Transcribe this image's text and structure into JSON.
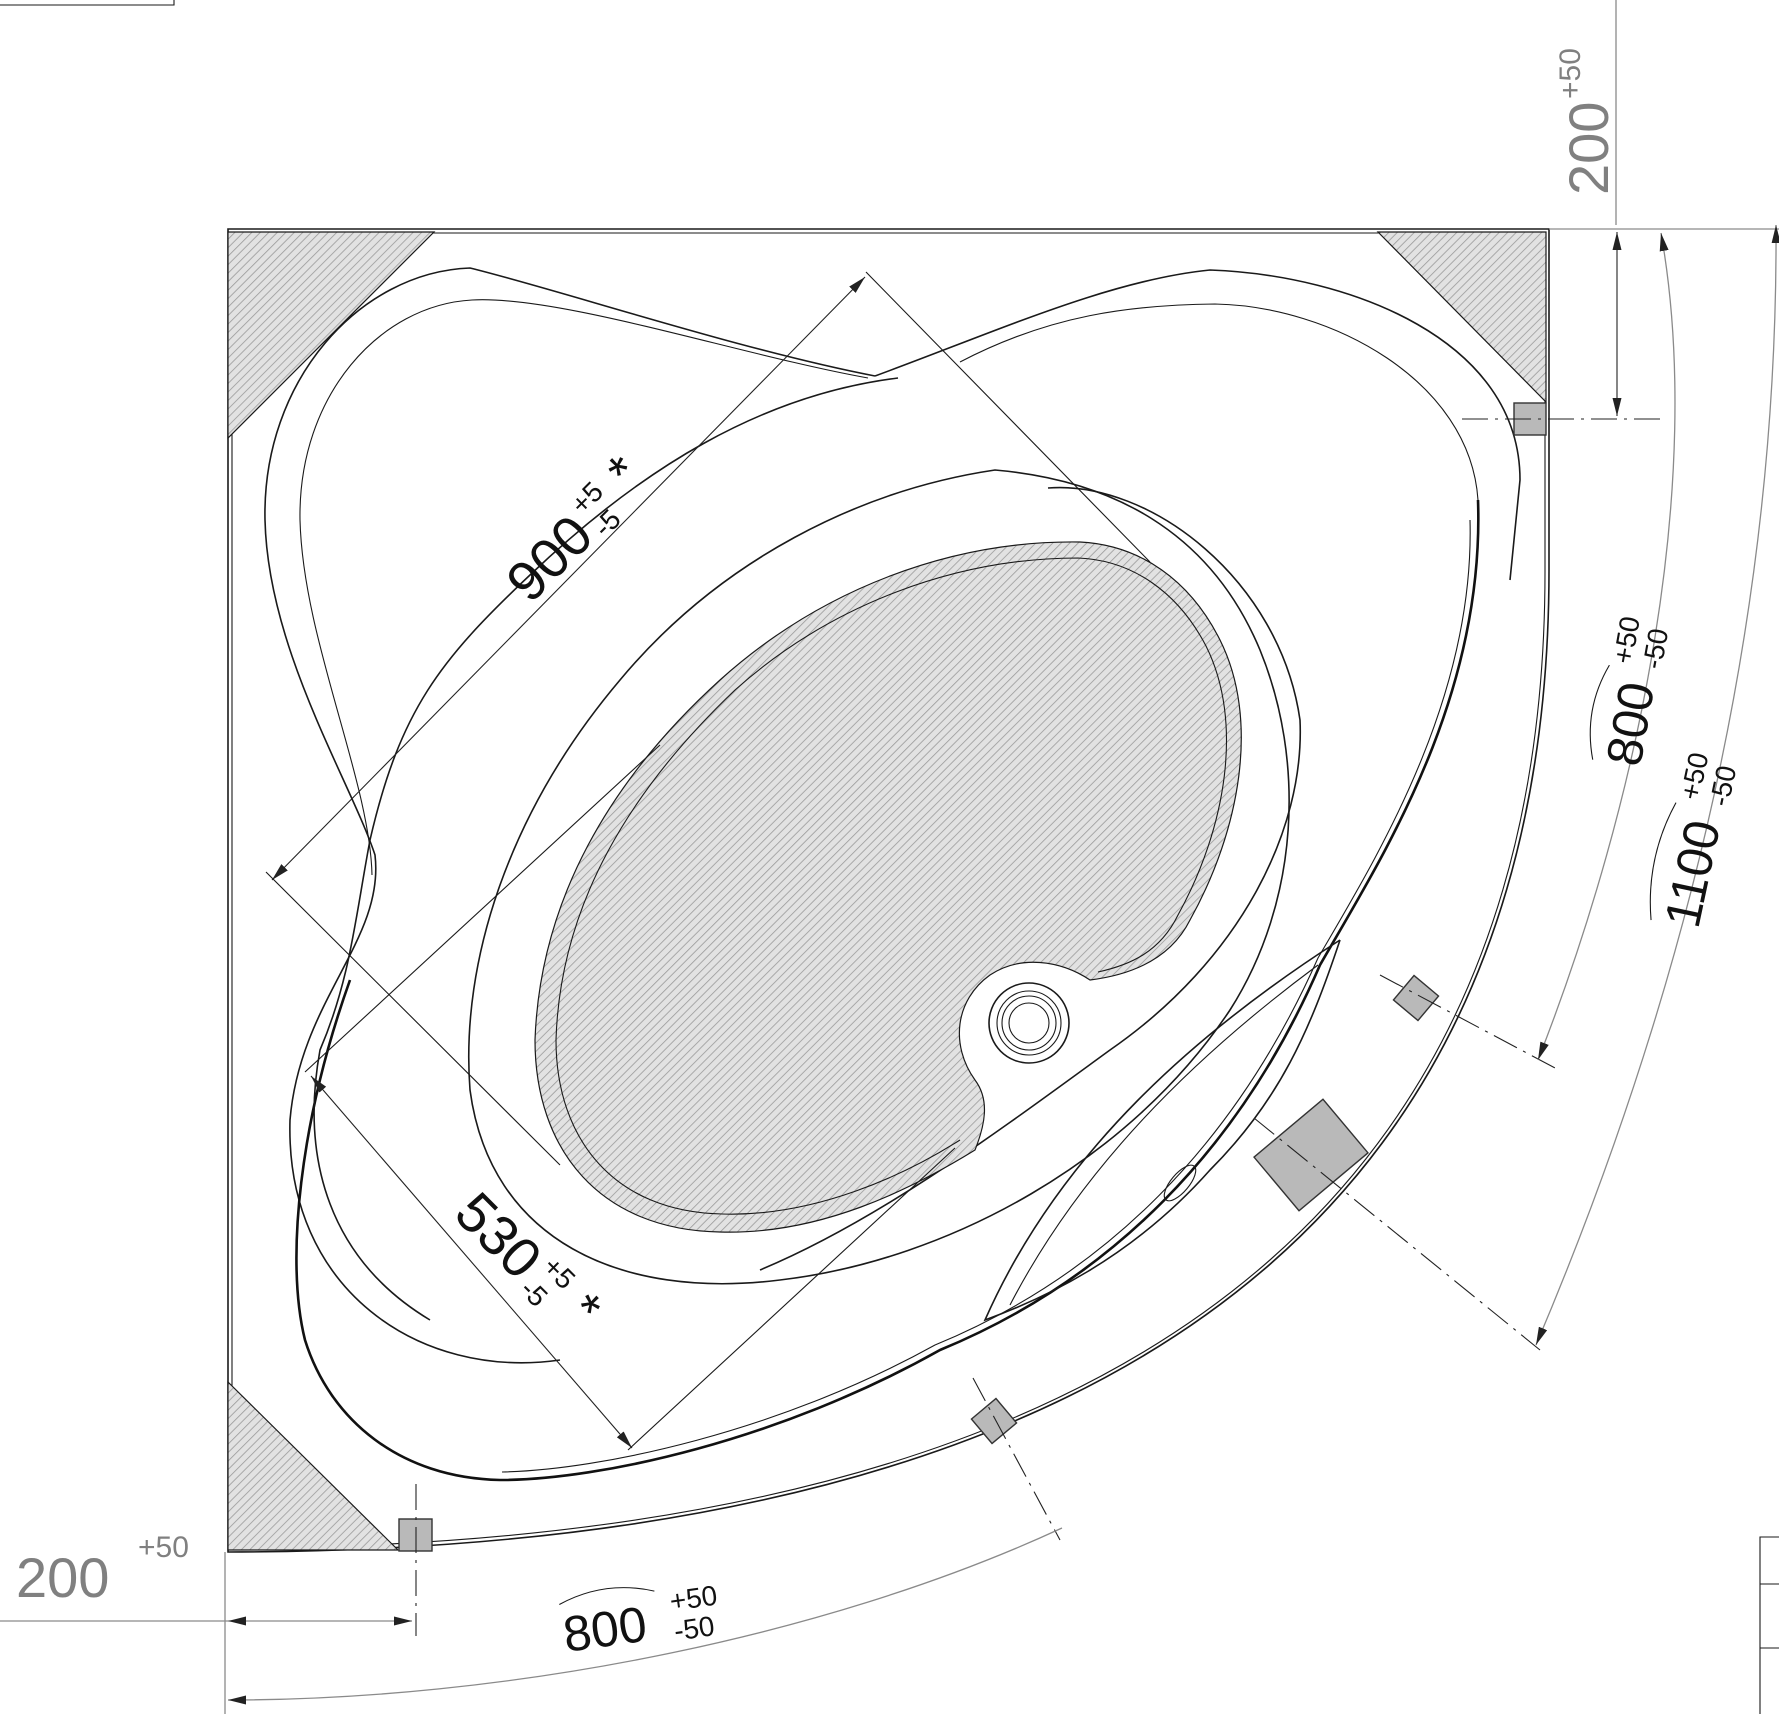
{
  "dimensions": {
    "top_offset": {
      "value": "200",
      "tolerance_plus": "+50"
    },
    "left_offset": {
      "value": "200",
      "tolerance_plus": "+50"
    },
    "inner_length": {
      "value": "900",
      "tolerance_plus": "+5",
      "tolerance_minus": "-5",
      "mark": "*"
    },
    "inner_width": {
      "value": "530",
      "tolerance_plus": "+5",
      "tolerance_minus": "-5",
      "mark": "*"
    },
    "arc_right_800": {
      "value": "800",
      "tolerance_plus": "+50",
      "tolerance_minus": "-50"
    },
    "arc_bottom_800": {
      "value": "800",
      "tolerance_plus": "+50",
      "tolerance_minus": "-50"
    },
    "arc_1100": {
      "value": "1100",
      "tolerance_plus": "+50",
      "tolerance_minus": "-50"
    }
  },
  "colors": {
    "line": "#1a1a1a",
    "dimension_gray": "#808080",
    "support_block": "#b9b9b9",
    "hatch": "#9a9a9a"
  }
}
